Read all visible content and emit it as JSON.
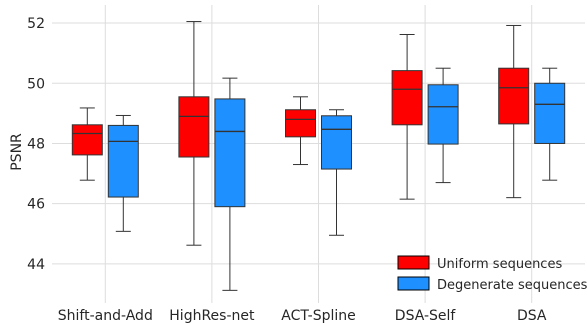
{
  "chart_data": {
    "type": "box",
    "ylabel": "PSNR",
    "xlabel": "",
    "ylim": [
      42.7,
      52.6
    ],
    "yticks": [
      44,
      46,
      48,
      50,
      52
    ],
    "grid": true,
    "legend_position": "bottom-right",
    "categories": [
      "Shift-and-Add",
      "HighRes-net",
      "ACT-Spline",
      "DSA-Self",
      "DSA"
    ],
    "series": [
      {
        "name": "Uniform sequences",
        "color": "#ff0000",
        "boxes": [
          {
            "whislo": 46.78,
            "q1": 47.62,
            "med": 48.33,
            "q3": 48.62,
            "whishi": 49.18
          },
          {
            "whislo": 44.62,
            "q1": 47.55,
            "med": 48.9,
            "q3": 49.55,
            "whishi": 52.05
          },
          {
            "whislo": 47.3,
            "q1": 48.22,
            "med": 48.8,
            "q3": 49.12,
            "whishi": 49.55
          },
          {
            "whislo": 46.15,
            "q1": 48.62,
            "med": 49.8,
            "q3": 50.42,
            "whishi": 51.62
          },
          {
            "whislo": 46.2,
            "q1": 48.65,
            "med": 49.85,
            "q3": 50.5,
            "whishi": 51.92
          }
        ]
      },
      {
        "name": "Degenerate sequences",
        "color": "#1e90ff",
        "boxes": [
          {
            "whislo": 45.08,
            "q1": 46.22,
            "med": 48.07,
            "q3": 48.6,
            "whishi": 48.93
          },
          {
            "whislo": 43.12,
            "q1": 45.9,
            "med": 48.4,
            "q3": 49.48,
            "whishi": 50.17
          },
          {
            "whislo": 44.95,
            "q1": 47.15,
            "med": 48.47,
            "q3": 48.92,
            "whishi": 49.12
          },
          {
            "whislo": 46.7,
            "q1": 47.98,
            "med": 49.22,
            "q3": 49.95,
            "whishi": 50.5
          },
          {
            "whislo": 46.78,
            "q1": 48.0,
            "med": 49.3,
            "q3": 50.0,
            "whishi": 50.5
          }
        ]
      }
    ]
  }
}
